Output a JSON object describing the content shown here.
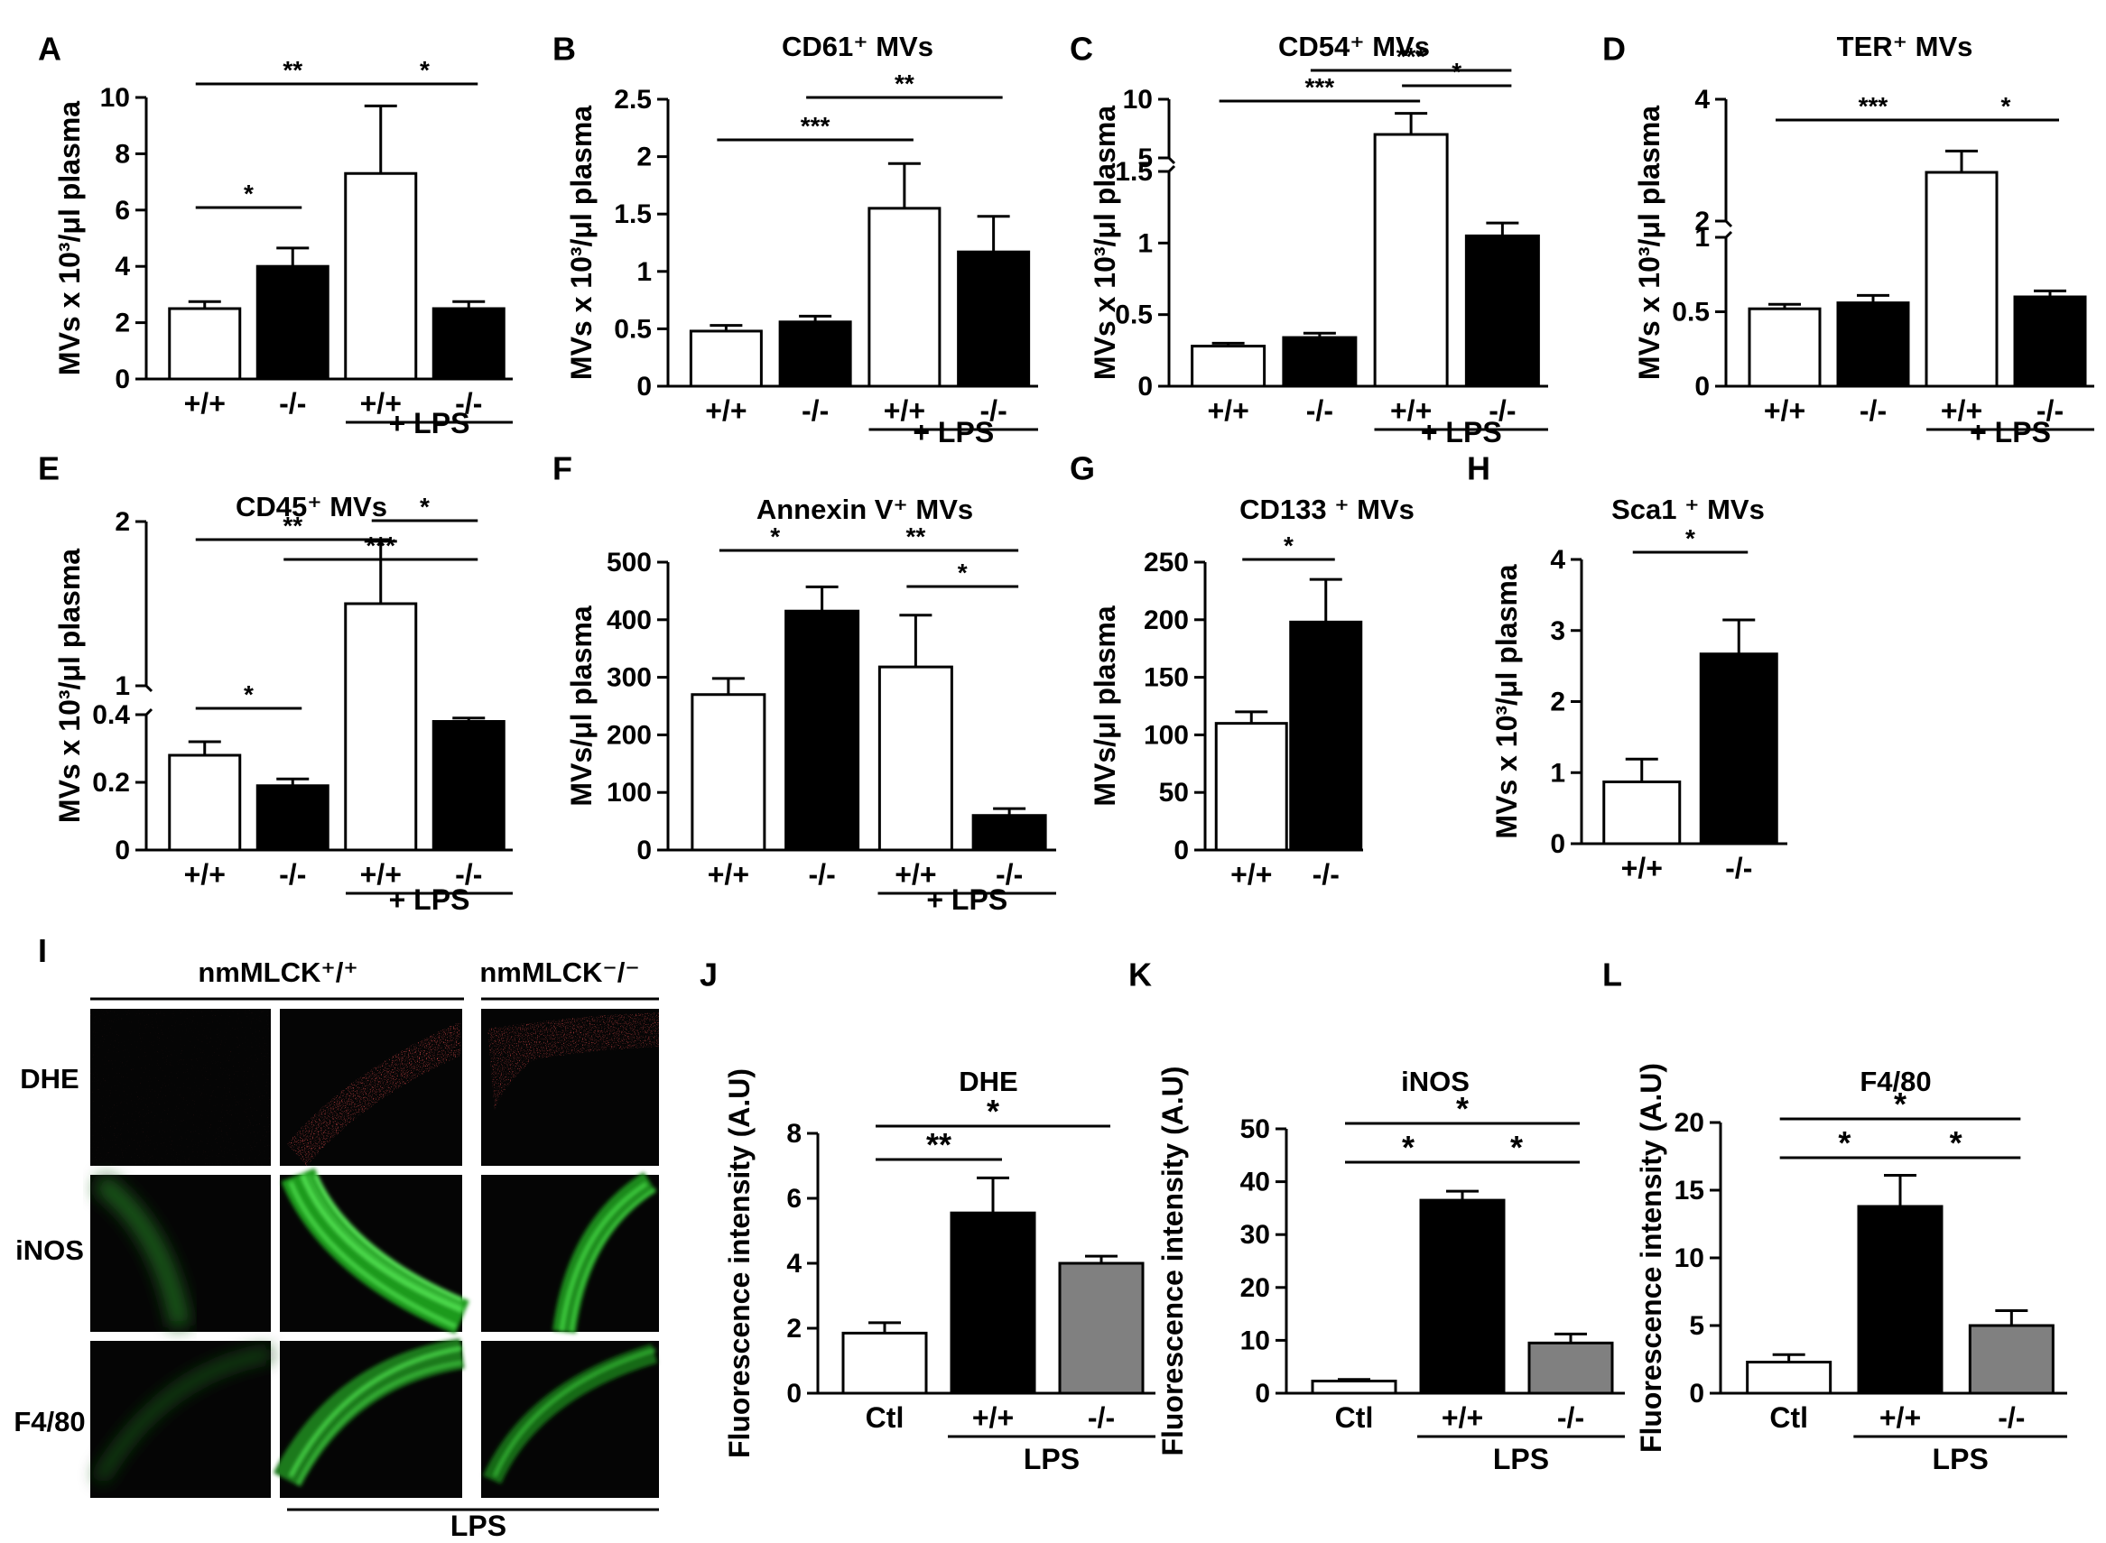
{
  "colors": {
    "open_bar": "#ffffff",
    "ko_bar": "#000000",
    "gray_bar": "#808080",
    "stroke": "#000000"
  },
  "chart_data": [
    {
      "panel": "A",
      "type": "bar",
      "title": "",
      "ylabel": "MVs x 10³/μl plasma",
      "categories": [
        "+/+",
        "-/-",
        "+/+",
        "-/-"
      ],
      "group_label": "+ LPS",
      "values": [
        2.5,
        4.0,
        7.3,
        2.5
      ],
      "errors": [
        0.25,
        0.65,
        2.4,
        0.25
      ],
      "fills": [
        "white",
        "black",
        "white",
        "black"
      ],
      "ylim": [
        0,
        10
      ],
      "yticks": [
        "0",
        "2",
        "4",
        "6",
        "8",
        "10"
      ],
      "significance": [
        {
          "from": 0,
          "to": 1,
          "label": "*"
        },
        {
          "from": 0,
          "to": 2,
          "label": "**"
        },
        {
          "from": 2,
          "to": 3,
          "label": "*"
        }
      ]
    },
    {
      "panel": "B",
      "type": "bar",
      "title": "CD61⁺ MVs",
      "ylabel": "MVs x 10³/μl plasma",
      "categories": [
        "+/+",
        "-/-",
        "+/+",
        "-/-"
      ],
      "group_label": "+ LPS",
      "values": [
        0.48,
        0.56,
        1.55,
        1.17
      ],
      "errors": [
        0.05,
        0.05,
        0.39,
        0.31
      ],
      "fills": [
        "white",
        "black",
        "white",
        "black"
      ],
      "ylim": [
        0,
        2.5
      ],
      "yticks": [
        "0",
        "0.5",
        "1",
        "1.5",
        "2",
        "2.5"
      ],
      "significance": [
        {
          "from": 0,
          "to": 2,
          "label": "***"
        },
        {
          "from": 1,
          "to": 3,
          "label": "**"
        }
      ]
    },
    {
      "panel": "C",
      "type": "bar",
      "title": "CD54⁺ MVs",
      "ylabel": "MVs x 10³/μl plasma",
      "categories": [
        "+/+",
        "-/-",
        "+/+",
        "-/-"
      ],
      "group_label": "+ LPS",
      "values": [
        0.28,
        0.34,
        7.0,
        1.05
      ],
      "errors": [
        0.02,
        0.03,
        1.8,
        0.09
      ],
      "fills": [
        "white",
        "black",
        "white",
        "black"
      ],
      "ylim": [
        0,
        10
      ],
      "axis_break": {
        "lower": [
          0,
          1.5
        ],
        "upper": [
          5,
          10
        ]
      },
      "yticks": [
        "0",
        "0.5",
        "1",
        "1.5",
        "5",
        "10"
      ],
      "significance": [
        {
          "from": 0,
          "to": 2,
          "label": "***"
        },
        {
          "from": 2,
          "to": 3,
          "label": "*"
        },
        {
          "from": 1,
          "to": 3,
          "label": "***"
        }
      ]
    },
    {
      "panel": "D",
      "type": "bar",
      "title": "TER⁺ MVs",
      "ylabel": "MVs x 10³/μl plasma",
      "categories": [
        "+/+",
        "-/-",
        "+/+",
        "-/-"
      ],
      "group_label": "+ LPS",
      "values": [
        0.52,
        0.56,
        2.8,
        0.6
      ],
      "errors": [
        0.03,
        0.05,
        0.35,
        0.04
      ],
      "fills": [
        "white",
        "black",
        "white",
        "black"
      ],
      "ylim": [
        0,
        4
      ],
      "axis_break": {
        "lower": [
          0,
          1
        ],
        "upper": [
          2,
          4
        ]
      },
      "yticks": [
        "0",
        "0.5",
        "1",
        "2",
        "4"
      ],
      "significance": [
        {
          "from": 0,
          "to": 2,
          "label": "***"
        },
        {
          "from": 2,
          "to": 3,
          "label": "*"
        }
      ]
    },
    {
      "panel": "E",
      "type": "bar",
      "title": "CD45⁺ MVs",
      "ylabel": "MVs x 10³/μl plasma",
      "categories": [
        "+/+",
        "-/-",
        "+/+",
        "-/-"
      ],
      "group_label": "+ LPS",
      "values": [
        0.28,
        0.19,
        1.5,
        0.38
      ],
      "errors": [
        0.04,
        0.02,
        0.38,
        0.01
      ],
      "fills": [
        "white",
        "black",
        "white",
        "black"
      ],
      "ylim": [
        0,
        2
      ],
      "axis_break": {
        "lower": [
          0,
          0.4
        ],
        "upper": [
          1,
          2
        ]
      },
      "yticks": [
        "0",
        "0.2",
        "0.4",
        "1",
        "2"
      ],
      "significance": [
        {
          "from": 0,
          "to": 1,
          "label": "*"
        },
        {
          "from": 0,
          "to": 2,
          "label": "**"
        },
        {
          "from": 1,
          "to": 3,
          "label": "***"
        },
        {
          "from": 2,
          "to": 3,
          "label": "*"
        }
      ]
    },
    {
      "panel": "F",
      "type": "bar",
      "title": "Annexin V⁺ MVs",
      "ylabel": "MVs/μl plasma",
      "categories": [
        "+/+",
        "-/-",
        "+/+",
        "-/-"
      ],
      "group_label": "+ LPS",
      "values": [
        270,
        415,
        318,
        60
      ],
      "errors": [
        28,
        42,
        90,
        12
      ],
      "fills": [
        "white",
        "black",
        "white",
        "black"
      ],
      "ylim": [
        0,
        500
      ],
      "yticks": [
        "0",
        "100",
        "200",
        "300",
        "400",
        "500"
      ],
      "significance": [
        {
          "from": 0,
          "to": 1,
          "label": "*"
        },
        {
          "from": 1,
          "to": 3,
          "label": "**"
        },
        {
          "from": 2,
          "to": 3,
          "label": "*"
        }
      ]
    },
    {
      "panel": "G",
      "type": "bar",
      "title": "CD133 ⁺ MVs",
      "ylabel": "MVs/μl plasma",
      "categories": [
        "+/+",
        "-/-"
      ],
      "group_label": "",
      "values": [
        110,
        198
      ],
      "errors": [
        10,
        37
      ],
      "fills": [
        "white",
        "black"
      ],
      "ylim": [
        0,
        250
      ],
      "yticks": [
        "0",
        "50",
        "100",
        "150",
        "200",
        "250"
      ],
      "significance": [
        {
          "from": 0,
          "to": 1,
          "label": "*"
        }
      ]
    },
    {
      "panel": "H",
      "type": "bar",
      "title": "Sca1 ⁺ MVs",
      "ylabel": "MVs x 10³/μl plasma",
      "categories": [
        "+/+",
        "-/-"
      ],
      "group_label": "",
      "values": [
        0.87,
        2.67
      ],
      "errors": [
        0.32,
        0.48
      ],
      "fills": [
        "white",
        "black"
      ],
      "ylim": [
        0,
        4
      ],
      "yticks": [
        "0",
        "1",
        "2",
        "3",
        "4"
      ],
      "significance": [
        {
          "from": 0,
          "to": 1,
          "label": "*"
        }
      ]
    },
    {
      "panel": "J",
      "type": "bar",
      "title": "DHE",
      "ylabel": "Fluorescence intensity (A.U)",
      "categories": [
        "Ctl",
        "+/+",
        "-/-"
      ],
      "group_label": "LPS",
      "values": [
        1.85,
        5.55,
        4.0
      ],
      "errors": [
        0.32,
        1.08,
        0.22
      ],
      "fills": [
        "white",
        "black",
        "gray"
      ],
      "ylim": [
        0,
        8
      ],
      "yticks": [
        "0",
        "2",
        "4",
        "6",
        "8"
      ],
      "significance": [
        {
          "from": 0,
          "to": 1,
          "label": "**"
        },
        {
          "from": 0,
          "to": 2,
          "label": "*"
        }
      ]
    },
    {
      "panel": "K",
      "type": "bar",
      "title": "iNOS",
      "ylabel": "Fluorescence intensity (A.U)",
      "categories": [
        "Ctl",
        "+/+",
        "-/-"
      ],
      "group_label": "LPS",
      "values": [
        2.3,
        36.5,
        9.5
      ],
      "errors": [
        0.3,
        1.7,
        1.7
      ],
      "fills": [
        "white",
        "black",
        "gray"
      ],
      "ylim": [
        0,
        50
      ],
      "yticks": [
        "0",
        "10",
        "20",
        "30",
        "40",
        "50"
      ],
      "significance": [
        {
          "from": 0,
          "to": 1,
          "label": "*"
        },
        {
          "from": 1,
          "to": 2,
          "label": "*"
        },
        {
          "from": 0,
          "to": 2,
          "label": "*"
        }
      ]
    },
    {
      "panel": "L",
      "type": "bar",
      "title": "F4/80",
      "ylabel": "Fluorescence intensity (A.U)",
      "categories": [
        "Ctl",
        "+/+",
        "-/-"
      ],
      "group_label": "LPS",
      "values": [
        2.3,
        13.8,
        5.0
      ],
      "errors": [
        0.55,
        2.3,
        1.1
      ],
      "fills": [
        "white",
        "black",
        "gray"
      ],
      "ylim": [
        0,
        20
      ],
      "yticks": [
        "0",
        "5",
        "10",
        "15",
        "20"
      ],
      "significance": [
        {
          "from": 0,
          "to": 1,
          "label": "*"
        },
        {
          "from": 1,
          "to": 2,
          "label": "*"
        },
        {
          "from": 0,
          "to": 2,
          "label": "*"
        }
      ]
    }
  ],
  "micrographs": {
    "panel": "I",
    "header_left": "nmMLCK⁺/⁺",
    "header_right": "nmMLCK⁻/⁻",
    "rows": [
      "DHE",
      "iNOS",
      "F4/80"
    ],
    "footer": "LPS"
  }
}
